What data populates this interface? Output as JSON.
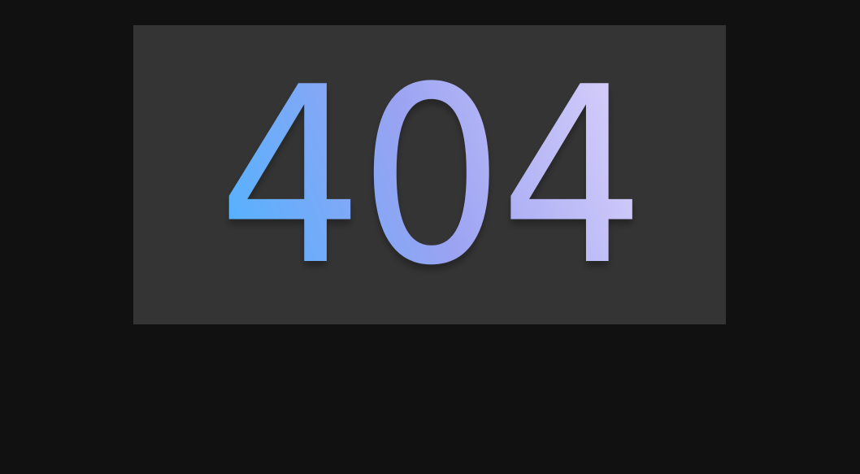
{
  "error_page": {
    "code": "404",
    "panel_color": "#343434",
    "background_color": "#111111",
    "gradient_start_color": "#4db3ff",
    "gradient_mid_color": "#9aa3f2",
    "gradient_end_color": "#d9d0fb"
  }
}
